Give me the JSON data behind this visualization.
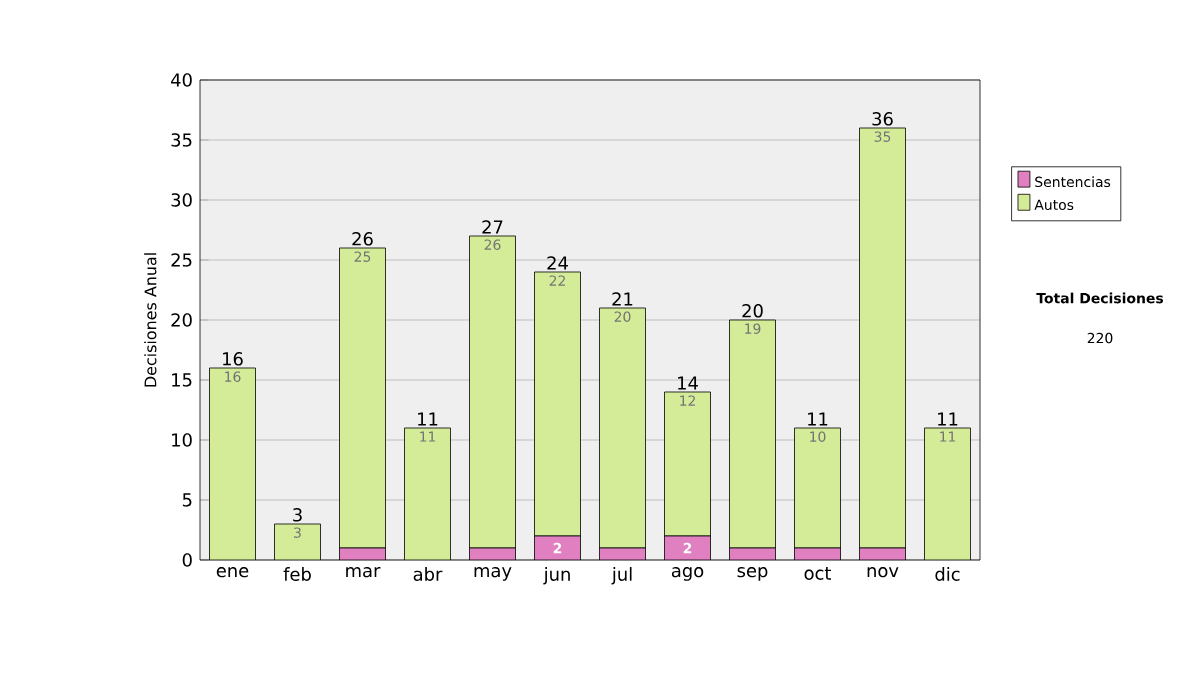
{
  "chart_data": {
    "type": "bar",
    "stacked": true,
    "ylabel": "Decisiones Anual",
    "categories": [
      "ene",
      "feb",
      "mar",
      "abr",
      "may",
      "jun",
      "jul",
      "ago",
      "sep",
      "oct",
      "nov",
      "dic"
    ],
    "series": [
      {
        "name": "Sentencias",
        "color": "#e080c0",
        "values": [
          0,
          0,
          1,
          0,
          1,
          2,
          1,
          2,
          1,
          1,
          1,
          0
        ],
        "value_labels": [
          null,
          null,
          null,
          null,
          null,
          "2",
          null,
          "2",
          null,
          null,
          null,
          null
        ]
      },
      {
        "name": "Autos",
        "color": "#d4ec98",
        "values": [
          16,
          3,
          25,
          11,
          26,
          22,
          20,
          12,
          19,
          10,
          35,
          11
        ],
        "value_labels": [
          "16",
          "3",
          "25",
          "11",
          "26",
          "22",
          "20",
          "12",
          "19",
          "10",
          "35",
          "11"
        ]
      }
    ],
    "totals": [
      "16",
      "3",
      "26",
      "11",
      "27",
      "24",
      "21",
      "14",
      "20",
      "11",
      "36",
      "11"
    ],
    "ylim": [
      0,
      40
    ],
    "yticks": [
      0,
      5,
      10,
      15,
      20,
      25,
      30,
      35,
      40
    ],
    "grid": "y",
    "legend": "right",
    "annotations": [
      "Total Decisiones",
      "220"
    ]
  }
}
